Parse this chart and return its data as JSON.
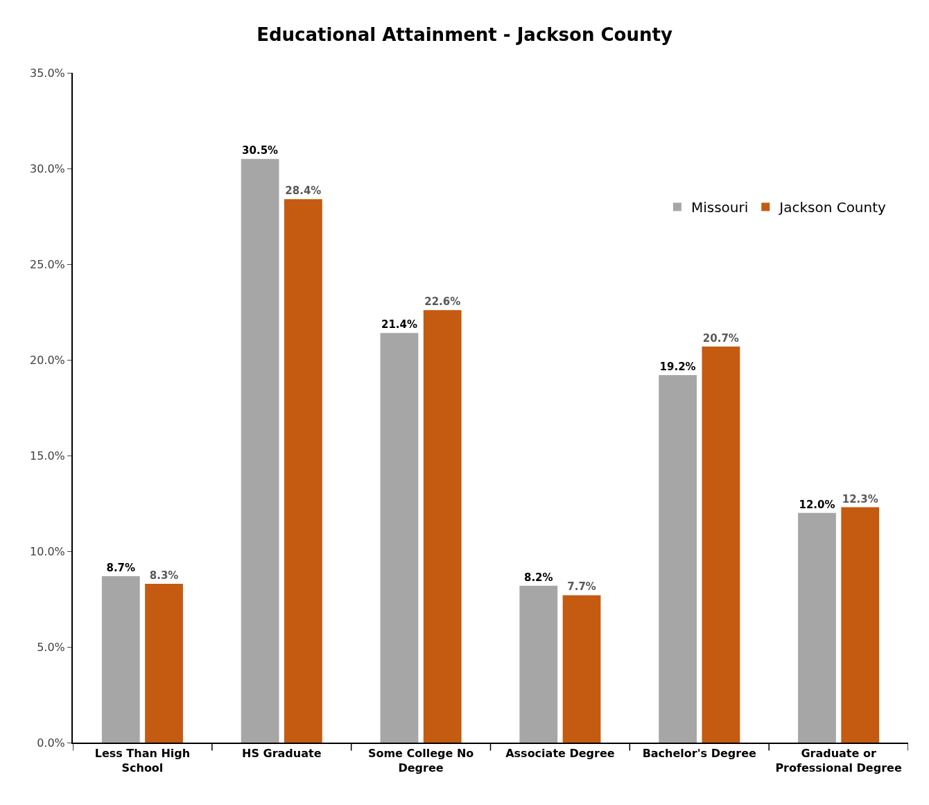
{
  "chart_data": {
    "type": "bar",
    "title": "Educational Attainment - Jackson County",
    "categories": [
      "Less Than High School",
      "HS Graduate",
      "Some College No Degree",
      "Associate Degree",
      "Bachelor's Degree",
      "Graduate or Professional Degree"
    ],
    "series": [
      {
        "name": "Missouri",
        "color": "#a6a6a6",
        "values": [
          8.7,
          30.5,
          21.4,
          8.2,
          19.2,
          12.0
        ],
        "value_labels": [
          "8.7%",
          "30.5%",
          "21.4%",
          "8.2%",
          "19.2%",
          "12.0%"
        ]
      },
      {
        "name": "Jackson County",
        "color": "#c55a11",
        "values": [
          8.3,
          28.4,
          22.6,
          7.7,
          20.7,
          12.3
        ],
        "value_labels": [
          "8.3%",
          "28.4%",
          "22.6%",
          "7.7%",
          "20.7%",
          "12.3%"
        ]
      }
    ],
    "ylim": [
      0,
      35
    ],
    "yticks": [
      {
        "value": 0,
        "label": "0.0%"
      },
      {
        "value": 5,
        "label": "5.0%"
      },
      {
        "value": 10,
        "label": "10.0%"
      },
      {
        "value": 15,
        "label": "15.0%"
      },
      {
        "value": 20,
        "label": "20.0%"
      },
      {
        "value": 25,
        "label": "25.0%"
      },
      {
        "value": 30,
        "label": "30.0%"
      },
      {
        "value": 35,
        "label": "35.0%"
      }
    ],
    "legend": "top right"
  }
}
